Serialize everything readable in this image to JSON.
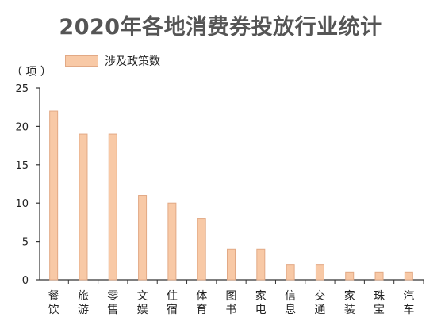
{
  "chart_data": {
    "type": "bar",
    "title": "2020年各地消费券投放行业统计",
    "unit_label": "（ 项 ）",
    "legend": [
      "涉及政策数"
    ],
    "categories": [
      "餐饮",
      "旅游",
      "零售",
      "文娱",
      "住宿",
      "体育",
      "图书",
      "家电",
      "信息",
      "交通",
      "家装",
      "珠宝",
      "汽车"
    ],
    "series": [
      {
        "name": "涉及政策数",
        "values": [
          22,
          19,
          19,
          11,
          10,
          8,
          4,
          4,
          2,
          2,
          1,
          1,
          1
        ]
      }
    ],
    "ylim": [
      0,
      25
    ],
    "yticks": [
      0,
      5,
      10,
      15,
      20,
      25
    ],
    "grid": false,
    "legend_position": "top-left",
    "colors": {
      "bar_fill": "#f8c9a6",
      "bar_stroke": "#e2a985",
      "axis": "#333333"
    }
  }
}
